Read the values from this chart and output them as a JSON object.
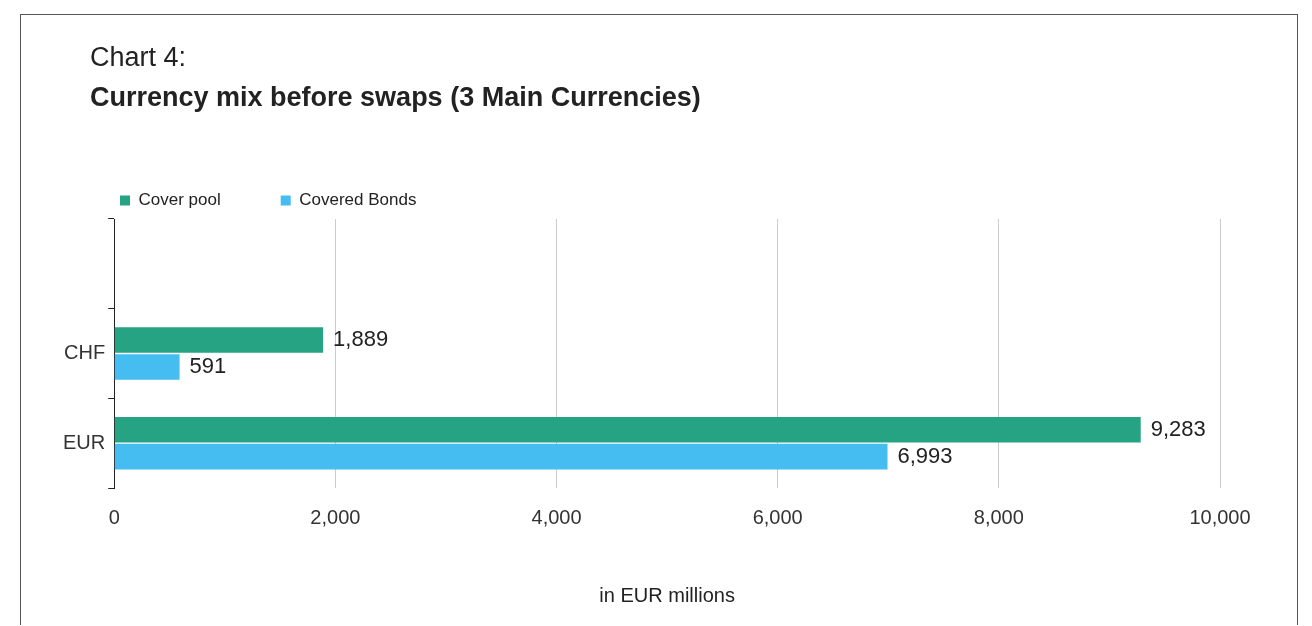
{
  "chart_data": {
    "type": "bar",
    "orientation": "horizontal",
    "title": "Chart 4:",
    "subtitle": "Currency mix before swaps (3 Main Currencies)",
    "xlabel": "in EUR millions",
    "categories": [
      null,
      "CHF",
      "EUR"
    ],
    "series": [
      {
        "name": "Cover pool",
        "color": "#26a382",
        "values": [
          null,
          1889,
          9283
        ],
        "value_labels": [
          null,
          "1,889",
          "9,283"
        ]
      },
      {
        "name": "Covered Bonds",
        "color": "#45bdf0",
        "values": [
          null,
          591,
          6993
        ],
        "value_labels": [
          null,
          "591",
          "6,993"
        ]
      }
    ],
    "xlim": [
      0,
      10000
    ],
    "xticks": [
      0,
      {
        "value": 2000,
        "label": "2,000"
      },
      {
        "value": 4000,
        "label": "4,000"
      },
      {
        "value": 6000,
        "label": "6,000"
      },
      {
        "value": 8000,
        "label": "8,000"
      },
      {
        "value": 10000,
        "label": "10,000"
      }
    ],
    "grid": "x",
    "legend": "top left"
  }
}
